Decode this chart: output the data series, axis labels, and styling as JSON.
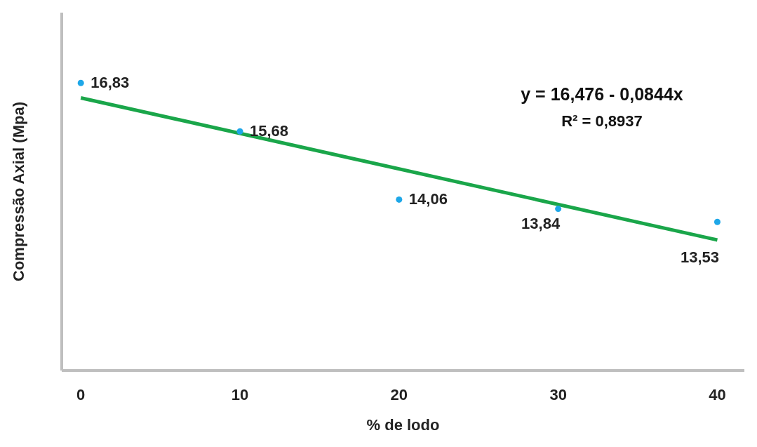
{
  "chart_data": {
    "type": "scatter",
    "xlabel": "% de lodo",
    "ylabel": "Compressão Axial (Mpa)",
    "x": [
      0,
      10,
      20,
      30,
      40
    ],
    "series": [
      {
        "marker": "circle",
        "color": "#1ea7e8",
        "values": [
          16.83,
          15.68,
          14.06,
          13.84,
          13.53
        ],
        "value_labels": [
          "16,83",
          "15,68",
          "14,06",
          "13,84",
          "13,53"
        ]
      },
      {
        "type": "line",
        "color": "#1aa64a",
        "x": [
          0,
          40
        ],
        "values": [
          16.476,
          13.1
        ]
      }
    ],
    "xlim": [
      -1.2,
      41.7
    ],
    "xticks": [
      0,
      10,
      20,
      30,
      40
    ],
    "ylim": [
      10,
      18.5
    ],
    "tick_labels": "x",
    "grid": false,
    "legend": false,
    "annotations": [
      "y = 16,476 - 0,0844x",
      "R² = 0,8937"
    ]
  }
}
